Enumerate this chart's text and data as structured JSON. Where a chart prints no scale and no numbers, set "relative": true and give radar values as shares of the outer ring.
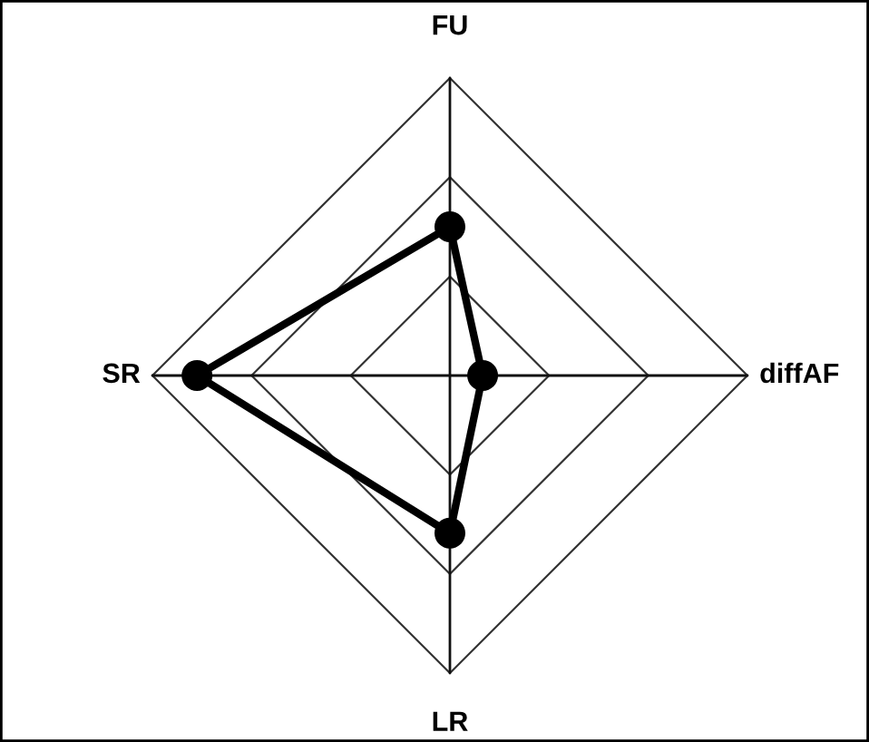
{
  "chart_data": {
    "type": "radar",
    "categories": [
      "FU",
      "diffAF",
      "LR",
      "SR"
    ],
    "relative": true,
    "series": [
      {
        "color": "#000000",
        "values": [
          0.5,
          0.11,
          0.53,
          0.85
        ]
      }
    ],
    "marker": "circle",
    "line_style": "solid",
    "grid": true
  }
}
